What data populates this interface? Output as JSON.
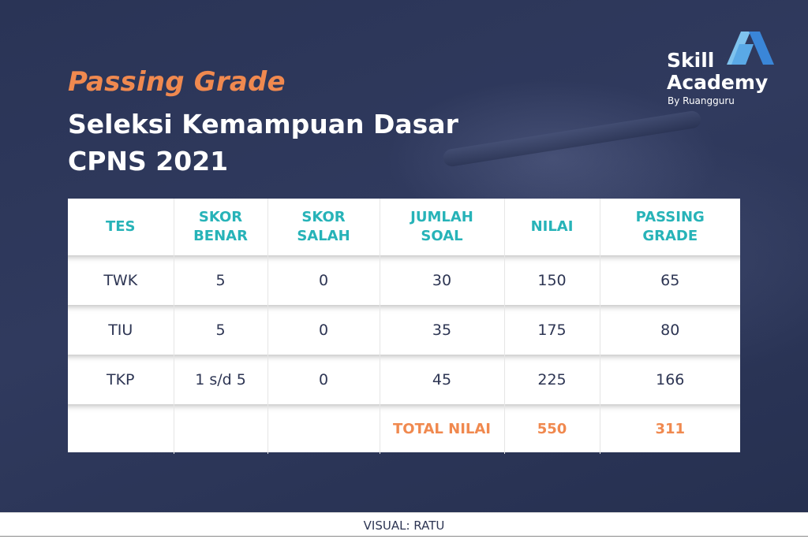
{
  "header": {
    "accent_title": "Passing Grade",
    "title_line1": "Seleksi Kemampuan Dasar",
    "title_line2": "CPNS 2021"
  },
  "logo": {
    "line1": "Skill",
    "line2": "Academy",
    "byline": "By Ruangguru",
    "icon": "skill-academy-logo-icon",
    "colors": {
      "primary": "#3a86d8",
      "secondary": "#7fc3ee"
    }
  },
  "table": {
    "headers": [
      [
        "TES"
      ],
      [
        "SKOR",
        "BENAR"
      ],
      [
        "SKOR",
        "SALAH"
      ],
      [
        "JUMLAH",
        "SOAL"
      ],
      [
        "NILAI"
      ],
      [
        "PASSING",
        "GRADE"
      ]
    ],
    "rows": [
      [
        "TWK",
        "5",
        "0",
        "30",
        "150",
        "65"
      ],
      [
        "TIU",
        "5",
        "0",
        "35",
        "175",
        "80"
      ],
      [
        "TKP",
        "1 s/d 5",
        "0",
        "45",
        "225",
        "166"
      ]
    ],
    "total": {
      "label": "TOTAL NILAI",
      "nilai": "550",
      "passing_grade": "311"
    }
  },
  "footer": {
    "credit": "VISUAL: RATU"
  },
  "colors": {
    "accent": "#f0894f",
    "header_teal": "#27b3b8",
    "text_dark": "#2d3553",
    "background": "#2b3557"
  }
}
